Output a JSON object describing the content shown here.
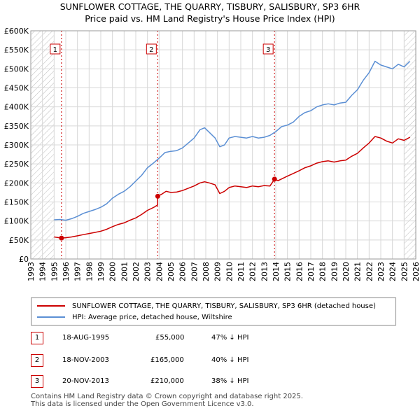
{
  "title_line1": "SUNFLOWER COTTAGE, THE QUARRY, TISBURY, SALISBURY, SP3 6HR",
  "title_line2": "Price paid vs. HM Land Registry's House Price Index (HPI)",
  "legend": {
    "property": "SUNFLOWER COTTAGE, THE QUARRY, TISBURY, SALISBURY, SP3 6HR (detached house)",
    "hpi": "HPI: Average price, detached house, Wiltshire"
  },
  "transactions": [
    {
      "num": "1",
      "date": "18-AUG-1995",
      "price": "£55,000",
      "hpi_diff": "47% ↓ HPI"
    },
    {
      "num": "2",
      "date": "18-NOV-2003",
      "price": "£165,000",
      "hpi_diff": "40% ↓ HPI"
    },
    {
      "num": "3",
      "date": "20-NOV-2013",
      "price": "£210,000",
      "hpi_diff": "38% ↓ HPI"
    }
  ],
  "footer_line1": "Contains HM Land Registry data © Crown copyright and database right 2025.",
  "footer_line2": "This data is licensed under the Open Government Licence v3.0.",
  "colors": {
    "property": "#cc0000",
    "hpi": "#5b8fd4",
    "grid": "#d8d8d8",
    "hatch": "#bbbbbb",
    "marker_line": "#cc0000"
  },
  "chart_data": {
    "type": "line",
    "xlim": [
      1993,
      2026
    ],
    "ylim": [
      0,
      600000
    ],
    "y_ticks": [
      {
        "value": 0,
        "label": "£0"
      },
      {
        "value": 50000,
        "label": "£50K"
      },
      {
        "value": 100000,
        "label": "£100K"
      },
      {
        "value": 150000,
        "label": "£150K"
      },
      {
        "value": 200000,
        "label": "£200K"
      },
      {
        "value": 250000,
        "label": "£250K"
      },
      {
        "value": 300000,
        "label": "£300K"
      },
      {
        "value": 350000,
        "label": "£350K"
      },
      {
        "value": 400000,
        "label": "£400K"
      },
      {
        "value": 450000,
        "label": "£450K"
      },
      {
        "value": 500000,
        "label": "£500K"
      },
      {
        "value": 550000,
        "label": "£550K"
      },
      {
        "value": 600000,
        "label": "£600K"
      }
    ],
    "x_ticks": [
      "1993",
      "1994",
      "1995",
      "1996",
      "1997",
      "1998",
      "1999",
      "2000",
      "2001",
      "2002",
      "2003",
      "2004",
      "2005",
      "2006",
      "2007",
      "2008",
      "2009",
      "2010",
      "2011",
      "2012",
      "2013",
      "2014",
      "2015",
      "2016",
      "2017",
      "2018",
      "2019",
      "2020",
      "2021",
      "2022",
      "2023",
      "2024",
      "2025",
      "2026"
    ],
    "hatched_regions": [
      [
        1993,
        1995.0
      ],
      [
        2025.0,
        2026
      ]
    ],
    "sale_markers": [
      {
        "label": "1",
        "x": 1995.63,
        "y": 55000
      },
      {
        "label": "2",
        "x": 2003.88,
        "y": 165000
      },
      {
        "label": "3",
        "x": 2013.89,
        "y": 210000
      }
    ],
    "series": [
      {
        "name": "HPI: Average price, detached house, Wiltshire",
        "points": [
          [
            1995.0,
            103000
          ],
          [
            1995.5,
            104000
          ],
          [
            1996.0,
            102000
          ],
          [
            1996.5,
            106000
          ],
          [
            1997.0,
            112000
          ],
          [
            1997.5,
            120000
          ],
          [
            1998.0,
            125000
          ],
          [
            1998.5,
            130000
          ],
          [
            1999.0,
            136000
          ],
          [
            1999.5,
            145000
          ],
          [
            2000.0,
            160000
          ],
          [
            2000.5,
            170000
          ],
          [
            2001.0,
            178000
          ],
          [
            2001.5,
            190000
          ],
          [
            2002.0,
            205000
          ],
          [
            2002.5,
            220000
          ],
          [
            2003.0,
            240000
          ],
          [
            2003.5,
            252000
          ],
          [
            2004.0,
            265000
          ],
          [
            2004.5,
            280000
          ],
          [
            2005.0,
            283000
          ],
          [
            2005.5,
            285000
          ],
          [
            2006.0,
            292000
          ],
          [
            2006.5,
            305000
          ],
          [
            2007.0,
            318000
          ],
          [
            2007.5,
            340000
          ],
          [
            2007.9,
            345000
          ],
          [
            2008.3,
            333000
          ],
          [
            2008.8,
            318000
          ],
          [
            2009.2,
            295000
          ],
          [
            2009.6,
            300000
          ],
          [
            2010.0,
            318000
          ],
          [
            2010.5,
            322000
          ],
          [
            2011.0,
            320000
          ],
          [
            2011.5,
            318000
          ],
          [
            2012.0,
            322000
          ],
          [
            2012.5,
            318000
          ],
          [
            2013.0,
            320000
          ],
          [
            2013.5,
            325000
          ],
          [
            2014.0,
            335000
          ],
          [
            2014.5,
            348000
          ],
          [
            2015.0,
            352000
          ],
          [
            2015.5,
            360000
          ],
          [
            2016.0,
            375000
          ],
          [
            2016.5,
            385000
          ],
          [
            2017.0,
            390000
          ],
          [
            2017.5,
            400000
          ],
          [
            2018.0,
            405000
          ],
          [
            2018.5,
            408000
          ],
          [
            2019.0,
            405000
          ],
          [
            2019.5,
            410000
          ],
          [
            2020.0,
            412000
          ],
          [
            2020.5,
            430000
          ],
          [
            2021.0,
            445000
          ],
          [
            2021.5,
            470000
          ],
          [
            2022.0,
            490000
          ],
          [
            2022.5,
            520000
          ],
          [
            2023.0,
            510000
          ],
          [
            2023.5,
            505000
          ],
          [
            2024.0,
            500000
          ],
          [
            2024.5,
            512000
          ],
          [
            2025.0,
            505000
          ],
          [
            2025.5,
            520000
          ]
        ]
      },
      {
        "name": "SUNFLOWER COTTAGE, THE QUARRY, TISBURY, SALISBURY, SP3 6HR (detached house)",
        "points": [
          [
            1995.0,
            58000
          ],
          [
            1995.63,
            55000
          ],
          [
            1996.0,
            56000
          ],
          [
            1996.5,
            58000
          ],
          [
            1997.0,
            61000
          ],
          [
            1997.5,
            64000
          ],
          [
            1998.0,
            67000
          ],
          [
            1998.5,
            70000
          ],
          [
            1999.0,
            73000
          ],
          [
            1999.5,
            78000
          ],
          [
            2000.0,
            85000
          ],
          [
            2000.5,
            91000
          ],
          [
            2001.0,
            95000
          ],
          [
            2001.5,
            102000
          ],
          [
            2002.0,
            108000
          ],
          [
            2002.5,
            117000
          ],
          [
            2003.0,
            128000
          ],
          [
            2003.5,
            135000
          ],
          [
            2003.87,
            142000
          ],
          [
            2003.88,
            165000
          ],
          [
            2004.2,
            170000
          ],
          [
            2004.6,
            178000
          ],
          [
            2005.0,
            175000
          ],
          [
            2005.5,
            176000
          ],
          [
            2006.0,
            180000
          ],
          [
            2006.5,
            186000
          ],
          [
            2007.0,
            192000
          ],
          [
            2007.5,
            200000
          ],
          [
            2007.9,
            203000
          ],
          [
            2008.3,
            200000
          ],
          [
            2008.8,
            195000
          ],
          [
            2009.2,
            172000
          ],
          [
            2009.6,
            178000
          ],
          [
            2010.0,
            188000
          ],
          [
            2010.5,
            192000
          ],
          [
            2011.0,
            190000
          ],
          [
            2011.5,
            188000
          ],
          [
            2012.0,
            192000
          ],
          [
            2012.5,
            190000
          ],
          [
            2013.0,
            193000
          ],
          [
            2013.5,
            192000
          ],
          [
            2013.89,
            210000
          ],
          [
            2014.2,
            206000
          ],
          [
            2014.6,
            212000
          ],
          [
            2015.0,
            218000
          ],
          [
            2015.5,
            225000
          ],
          [
            2016.0,
            232000
          ],
          [
            2016.5,
            240000
          ],
          [
            2017.0,
            245000
          ],
          [
            2017.5,
            252000
          ],
          [
            2018.0,
            256000
          ],
          [
            2018.5,
            258000
          ],
          [
            2019.0,
            255000
          ],
          [
            2019.5,
            258000
          ],
          [
            2020.0,
            260000
          ],
          [
            2020.5,
            270000
          ],
          [
            2021.0,
            278000
          ],
          [
            2021.5,
            292000
          ],
          [
            2022.0,
            305000
          ],
          [
            2022.5,
            322000
          ],
          [
            2023.0,
            318000
          ],
          [
            2023.5,
            310000
          ],
          [
            2024.0,
            305000
          ],
          [
            2024.5,
            316000
          ],
          [
            2025.0,
            312000
          ],
          [
            2025.5,
            320000
          ]
        ]
      }
    ]
  }
}
